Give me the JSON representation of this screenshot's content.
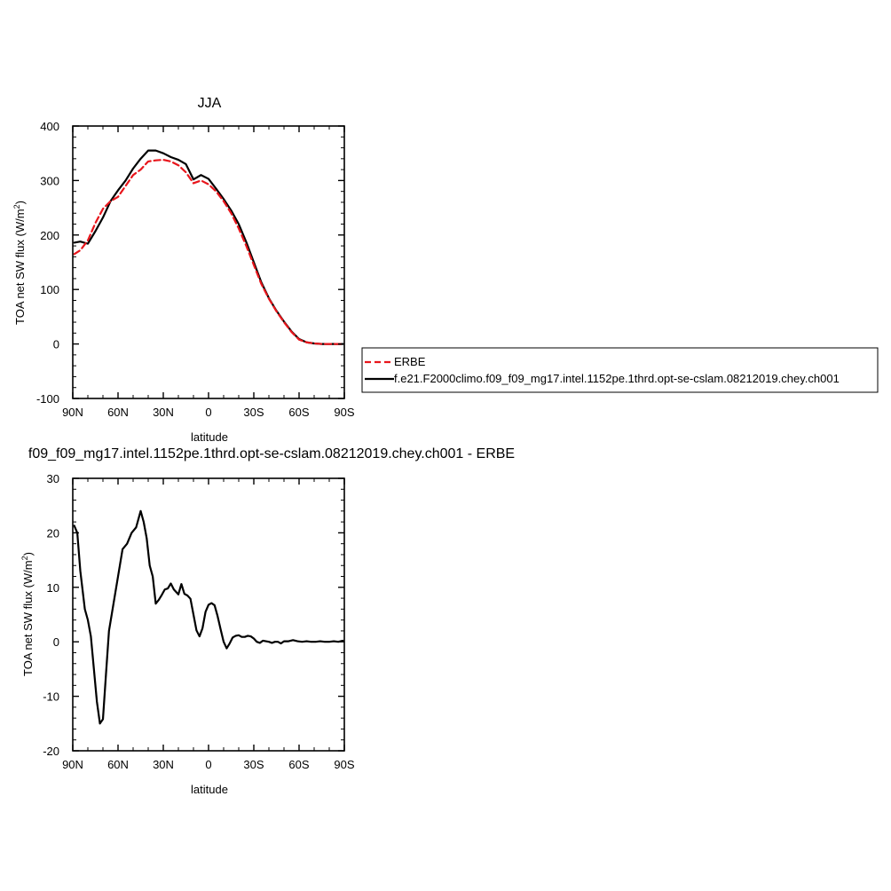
{
  "chart_data": [
    {
      "type": "line",
      "title": "JJA",
      "xlabel": "latitude",
      "ylabel": "TOA net SW flux (W/m",
      "ylabel_sup": "2",
      "ylabel_end": ")",
      "xlim": [
        90,
        -90
      ],
      "ylim": [
        -100,
        400
      ],
      "xticks": [
        90,
        60,
        30,
        0,
        -30,
        -60,
        -90
      ],
      "xtick_labels": [
        "90N",
        "60N",
        "30N",
        "0",
        "30S",
        "60S",
        "90S"
      ],
      "yticks": [
        -100,
        0,
        100,
        200,
        300,
        400
      ],
      "ytick_labels": [
        "-100",
        "0",
        "100",
        "200",
        "300",
        "400"
      ],
      "legend": "right, outside plot",
      "series": [
        {
          "name": "ERBE",
          "color": "#e8161c",
          "dash": true,
          "x": [
            89,
            85,
            80,
            75,
            70,
            65,
            60,
            55,
            50,
            45,
            40,
            35,
            30,
            25,
            20,
            15,
            10,
            5,
            0,
            -5,
            -10,
            -15,
            -20,
            -25,
            -30,
            -35,
            -40,
            -45,
            -50,
            -55,
            -60,
            -65,
            -70,
            -75,
            -80,
            -85,
            -89
          ],
          "y": [
            165,
            172,
            190,
            222,
            248,
            262,
            270,
            290,
            310,
            320,
            335,
            337,
            338,
            335,
            328,
            315,
            295,
            300,
            293,
            280,
            262,
            240,
            212,
            180,
            145,
            110,
            83,
            60,
            40,
            22,
            8,
            3,
            1,
            0,
            0,
            0,
            0
          ]
        },
        {
          "name": "f.e21.F2000climo.f09_f09_mg17.intel.1152pe.1thrd.opt-se-cslam.08212019.chey.ch001",
          "color": "#000000",
          "dash": false,
          "x": [
            89,
            85,
            80,
            75,
            70,
            65,
            60,
            55,
            50,
            45,
            40,
            35,
            30,
            25,
            20,
            15,
            10,
            5,
            0,
            -5,
            -10,
            -15,
            -20,
            -25,
            -30,
            -35,
            -40,
            -45,
            -50,
            -55,
            -60,
            -65,
            -70,
            -75,
            -80,
            -85,
            -89
          ],
          "y": [
            186,
            188,
            184,
            207,
            232,
            262,
            282,
            300,
            322,
            340,
            355,
            355,
            350,
            343,
            338,
            330,
            302,
            310,
            303,
            285,
            266,
            245,
            220,
            187,
            150,
            113,
            84,
            61,
            41,
            23,
            9,
            3,
            1,
            0,
            0,
            0,
            0
          ]
        }
      ]
    },
    {
      "type": "line",
      "title": "f09_f09_mg17.intel.1152pe.1thrd.opt-se-cslam.08212019.chey.ch001 - ERBE",
      "xlabel": "latitude",
      "ylabel": "TOA net SW flux (W/m",
      "ylabel_sup": "2",
      "ylabel_end": ")",
      "xlim": [
        90,
        -90
      ],
      "ylim": [
        -20,
        30
      ],
      "xticks": [
        90,
        60,
        30,
        0,
        -30,
        -60,
        -90
      ],
      "xtick_labels": [
        "90N",
        "60N",
        "30N",
        "0",
        "30S",
        "60S",
        "90S"
      ],
      "yticks": [
        -20,
        -10,
        0,
        10,
        20,
        30
      ],
      "ytick_labels": [
        "-20",
        "-10",
        "0",
        "10",
        "20",
        "30"
      ],
      "series": [
        {
          "color": "#000000",
          "dash": false,
          "x": [
            89,
            87,
            85,
            82,
            80,
            78,
            76,
            74,
            72,
            70,
            68,
            66,
            63,
            60,
            57,
            54,
            51,
            48,
            45,
            43,
            41,
            39,
            37,
            35,
            33,
            31,
            29,
            27,
            25,
            23,
            20,
            18,
            16,
            14,
            12,
            10,
            8,
            6,
            4,
            2,
            0,
            -2,
            -4,
            -6,
            -8,
            -10,
            -12,
            -14,
            -16,
            -18,
            -20,
            -22,
            -24,
            -26,
            -28,
            -30,
            -32,
            -34,
            -36,
            -38,
            -40,
            -42,
            -44,
            -46,
            -48,
            -50,
            -53,
            -56,
            -59,
            -62,
            -65,
            -68,
            -71,
            -74,
            -77,
            -80,
            -83,
            -86,
            -89
          ],
          "y": [
            21.3,
            20,
            13,
            6,
            4,
            1,
            -5,
            -11,
            -15,
            -14.2,
            -6,
            2,
            7,
            12,
            17,
            18,
            20,
            21,
            24,
            22,
            19,
            14,
            12,
            7,
            7.7,
            8.6,
            9.6,
            9.8,
            10.7,
            9.6,
            8.7,
            10.6,
            8.8,
            8.5,
            7.9,
            5,
            2.1,
            1,
            2.5,
            5.5,
            6.8,
            7.1,
            6.7,
            4.7,
            2.3,
            0,
            -1.2,
            -0.3,
            0.8,
            1.1,
            1.2,
            0.9,
            0.9,
            1.1,
            1,
            0.6,
            0,
            -0.2,
            0.2,
            0.1,
            0,
            -0.2,
            0,
            0,
            -0.3,
            0.1,
            0.1,
            0.3,
            0.1,
            0,
            0.1,
            0,
            0,
            0.1,
            0,
            0,
            0.1,
            0,
            0.2
          ]
        }
      ]
    }
  ]
}
